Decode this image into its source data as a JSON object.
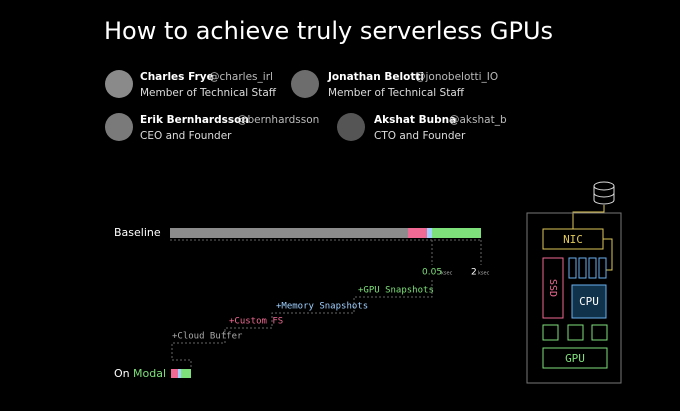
{
  "header": {
    "title": "How to achieve truly serverless GPUs"
  },
  "authors": [
    {
      "name": "Charles Frye",
      "handle": "@charles_irl",
      "role": "Member of Technical Staff"
    },
    {
      "name": "Jonathan Belotti",
      "handle": "@jonobelotti_IO",
      "role": "Member of Technical Staff"
    },
    {
      "name": "Erik Bernhardsson",
      "handle": "@bernhardsson",
      "role": "CEO and Founder"
    },
    {
      "name": "Akshat Bubna",
      "handle": "@akshat_b",
      "role": "CTO and Founder"
    }
  ],
  "timeline": {
    "baseline_label": "Baseline",
    "marks": [
      {
        "value": "0.05",
        "unit": "ksec"
      },
      {
        "value": "2",
        "unit": "ksec"
      }
    ],
    "steps": [
      "+GPU Snapshots",
      "+Memory Snapshots",
      "+Custom FS",
      "+Cloud Buffer"
    ],
    "final_prefix": "On",
    "final_name": "Modal"
  },
  "hardware": {
    "nic": "NIC",
    "ssd": "SSD",
    "cpu": "CPU",
    "gpu": "GPU"
  }
}
